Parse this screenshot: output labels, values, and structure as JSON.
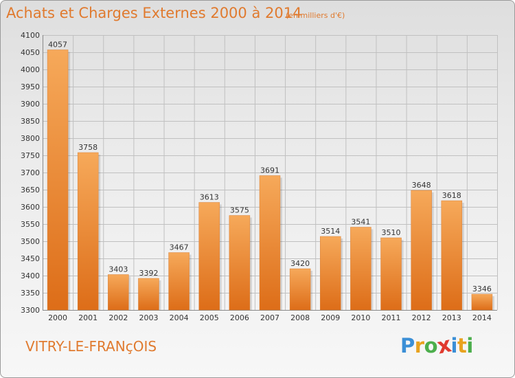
{
  "header": {
    "title": "Achats et Charges Externes 2000 à 2014",
    "unit": "(en milliers d'€)"
  },
  "footer": {
    "city": "VITRY-LE-FRANçOIS",
    "logo_letters": [
      "P",
      "r",
      "o",
      "x",
      "i",
      "t",
      "i"
    ],
    "logo_colors": [
      "#3b8fd6",
      "#e8a21f",
      "#4cae4c",
      "#e03a2e",
      "#3b8fd6",
      "#e8a21f",
      "#4cae4c"
    ]
  },
  "colors": {
    "bar_light": "#f6a95a",
    "bar_dark": "#dd6d18",
    "grid": "#c0c0c0",
    "axis_text": "#333333",
    "accent": "#e07a2e"
  },
  "chart_data": {
    "type": "bar",
    "categories": [
      "2000",
      "2001",
      "2002",
      "2003",
      "2004",
      "2005",
      "2006",
      "2007",
      "2008",
      "2009",
      "2010",
      "2011",
      "2012",
      "2013",
      "2014"
    ],
    "values": [
      4057,
      3758,
      3403,
      3392,
      3467,
      3613,
      3575,
      3691,
      3420,
      3514,
      3541,
      3510,
      3648,
      3618,
      3346
    ],
    "ylim": [
      3300,
      4100
    ],
    "yticks": [
      3300,
      3350,
      3400,
      3450,
      3500,
      3550,
      3600,
      3650,
      3700,
      3750,
      3800,
      3850,
      3900,
      3950,
      4000,
      4050,
      4100
    ],
    "grid": true,
    "data_labels": true
  }
}
